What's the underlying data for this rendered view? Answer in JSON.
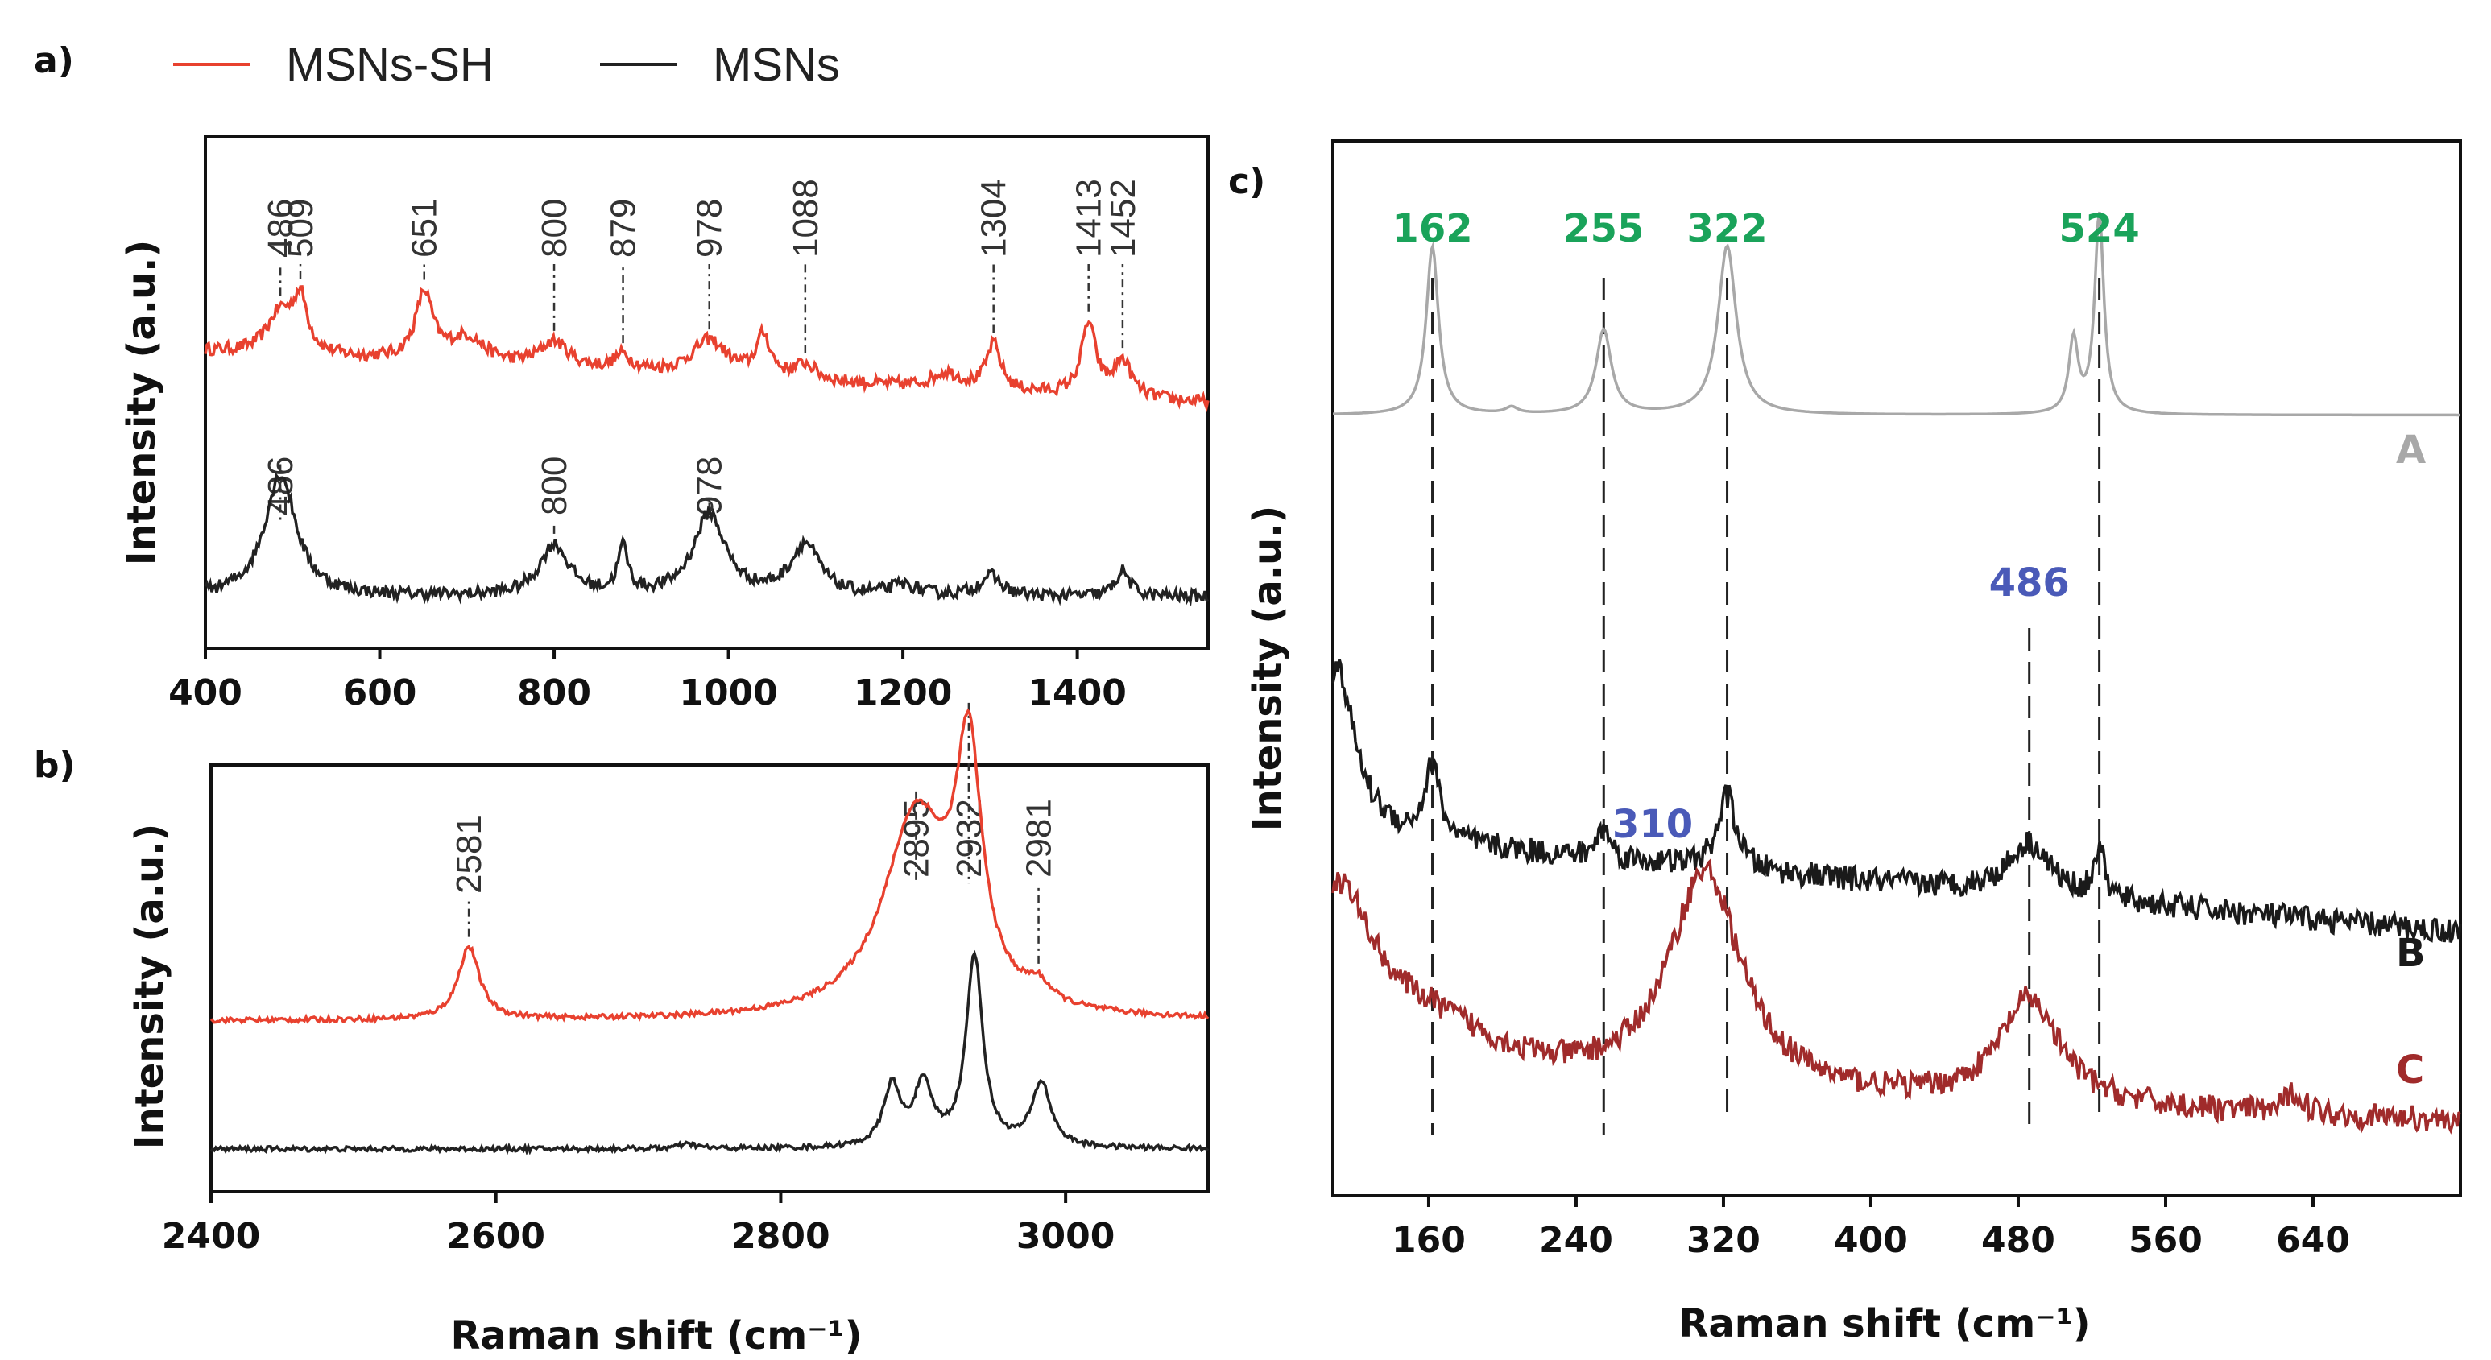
{
  "legend": {
    "items": [
      {
        "name": "MSNs-SH",
        "color": "#e8412f"
      },
      {
        "name": "MSNs",
        "color": "#222222"
      }
    ]
  },
  "chart_data": [
    {
      "id": "a",
      "panel_label": "a)",
      "type": "line",
      "xlabel": "",
      "ylabel": "Intensity (a.u.)",
      "xlim": [
        400,
        1550
      ],
      "xticks": [
        "400",
        "600",
        "800",
        "1000",
        "1200",
        "1400"
      ],
      "series": [
        {
          "name": "MSNs-SH",
          "color": "#e8412f",
          "baseline": 0.58,
          "slope": -0.1,
          "peaks": [
            {
              "x": 486,
              "h": 0.08,
              "w": 18
            },
            {
              "x": 509,
              "h": 0.1,
              "w": 10
            },
            {
              "x": 651,
              "h": 0.13,
              "w": 12
            },
            {
              "x": 700,
              "h": 0.05,
              "w": 25
            },
            {
              "x": 800,
              "h": 0.05,
              "w": 20
            },
            {
              "x": 879,
              "h": 0.03,
              "w": 12
            },
            {
              "x": 978,
              "h": 0.07,
              "w": 25
            },
            {
              "x": 1040,
              "h": 0.08,
              "w": 10
            },
            {
              "x": 1088,
              "h": 0.03,
              "w": 15
            },
            {
              "x": 1250,
              "h": 0.03,
              "w": 20
            },
            {
              "x": 1304,
              "h": 0.09,
              "w": 10
            },
            {
              "x": 1413,
              "h": 0.14,
              "w": 10
            },
            {
              "x": 1452,
              "h": 0.07,
              "w": 12
            }
          ],
          "peak_labels": [
            "486",
            "509",
            "651",
            "800",
            "879",
            "978",
            "1088",
            "1304",
            "1413",
            "1452"
          ]
        },
        {
          "name": "MSNs",
          "color": "#222222",
          "baseline": 0.1,
          "slope": 0.0,
          "peaks": [
            {
              "x": 486,
              "h": 0.24,
              "w": 22
            },
            {
              "x": 800,
              "h": 0.1,
              "w": 20
            },
            {
              "x": 879,
              "h": 0.09,
              "w": 7
            },
            {
              "x": 978,
              "h": 0.16,
              "w": 22
            },
            {
              "x": 1088,
              "h": 0.1,
              "w": 20
            },
            {
              "x": 1200,
              "h": 0.02,
              "w": 20
            },
            {
              "x": 1300,
              "h": 0.04,
              "w": 15
            },
            {
              "x": 1452,
              "h": 0.05,
              "w": 10
            }
          ],
          "peak_labels": [
            "486",
            "800",
            "978"
          ]
        }
      ]
    },
    {
      "id": "b",
      "panel_label": "b)",
      "type": "line",
      "xlabel": "Raman shift (cm⁻¹)",
      "ylabel": "Intensity (a.u.)",
      "xlim": [
        2400,
        3100
      ],
      "xticks": [
        "2400",
        "2600",
        "2800",
        "3000"
      ],
      "series": [
        {
          "name": "MSNs-SH",
          "color": "#e8412f",
          "baseline": 0.4,
          "slope": 0.0,
          "peaks": [
            {
              "x": 2581,
              "h": 0.17,
              "w": 9
            },
            {
              "x": 2895,
              "h": 0.47,
              "w": 28
            },
            {
              "x": 2932,
              "h": 0.55,
              "w": 11
            },
            {
              "x": 2981,
              "h": 0.04,
              "w": 10
            }
          ],
          "peak_labels": [
            "2581",
            "2895",
            "2932",
            "2981"
          ]
        },
        {
          "name": "MSNs",
          "color": "#222222",
          "baseline": 0.1,
          "slope": 0.0,
          "peaks": [
            {
              "x": 2735,
              "h": 0.01,
              "w": 8
            },
            {
              "x": 2878,
              "h": 0.14,
              "w": 7
            },
            {
              "x": 2900,
              "h": 0.14,
              "w": 8
            },
            {
              "x": 2936,
              "h": 0.45,
              "w": 7
            },
            {
              "x": 2983,
              "h": 0.15,
              "w": 8
            }
          ],
          "peak_labels": []
        }
      ]
    },
    {
      "id": "c",
      "panel_label": "c)",
      "type": "line",
      "xlabel": "Raman shift (cm⁻¹)",
      "ylabel": "Intensity (a.u.)",
      "xlim": [
        108,
        720
      ],
      "xticks": [
        "160",
        "240",
        "320",
        "400",
        "480",
        "560",
        "640"
      ],
      "reference_lines": [
        "162",
        "255",
        "322",
        "486",
        "524"
      ],
      "annotations": [
        {
          "text": "162",
          "x": 162,
          "color": "#1aa35a"
        },
        {
          "text": "255",
          "x": 255,
          "color": "#1aa35a"
        },
        {
          "text": "322",
          "x": 322,
          "color": "#1aa35a"
        },
        {
          "text": "524",
          "x": 524,
          "color": "#1aa35a"
        },
        {
          "text": "486",
          "x": 486,
          "color": "#4a5ab8"
        },
        {
          "text": "310",
          "x": 310,
          "color": "#4a5ab8"
        }
      ],
      "series": [
        {
          "name": "A",
          "color": "#a8a8a8",
          "baseline": 0.74,
          "slope": 0.0,
          "peaks": [
            {
              "x": 162,
              "h": 0.16,
              "w": 4
            },
            {
              "x": 205,
              "h": 0.006,
              "w": 4
            },
            {
              "x": 255,
              "h": 0.08,
              "w": 5
            },
            {
              "x": 322,
              "h": 0.16,
              "w": 6
            },
            {
              "x": 510,
              "h": 0.07,
              "w": 3
            },
            {
              "x": 524,
              "h": 0.19,
              "w": 3
            }
          ]
        },
        {
          "name": "B",
          "color": "#1a1a1a",
          "baseline": 0.34,
          "slope": -0.09,
          "peaks": [
            {
              "x": 110,
              "h": 0.16,
              "w": 12
            },
            {
              "x": 162,
              "h": 0.07,
              "w": 5
            },
            {
              "x": 255,
              "h": 0.03,
              "w": 4
            },
            {
              "x": 322,
              "h": 0.07,
              "w": 6
            },
            {
              "x": 486,
              "h": 0.05,
              "w": 14
            },
            {
              "x": 524,
              "h": 0.05,
              "w": 3
            }
          ]
        },
        {
          "name": "C",
          "color": "#a02b2b",
          "baseline": 0.1,
          "slope": -0.03,
          "peaks": [
            {
              "x": 110,
              "h": 0.17,
              "w": 25
            },
            {
              "x": 160,
              "h": 0.05,
              "w": 50
            },
            {
              "x": 310,
              "h": 0.21,
              "w": 24
            },
            {
              "x": 486,
              "h": 0.1,
              "w": 20
            },
            {
              "x": 630,
              "h": 0.02,
              "w": 6
            }
          ]
        }
      ]
    }
  ]
}
